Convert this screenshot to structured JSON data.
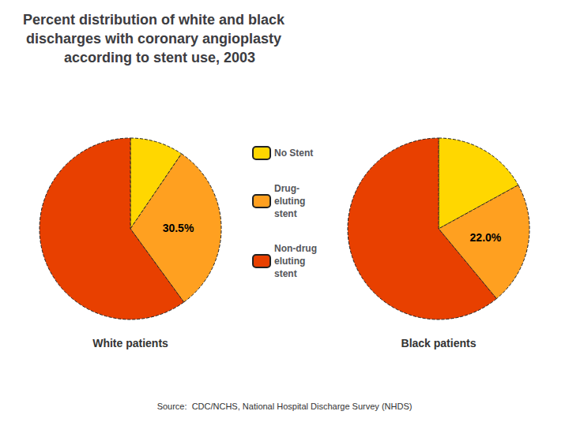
{
  "chart_data": {
    "type": "pie",
    "title": "Percent distribution of white and black\ndischarges with coronary angioplasty\n   according to stent use, 2003",
    "categories": [
      "No Stent",
      "Drug-\neluting\nstent",
      "Non-drug\neluting\nstent"
    ],
    "colors": [
      "#FFD700",
      "#FFA020",
      "#E84000"
    ],
    "series": [
      {
        "name": "White patients",
        "values": [
          9.5,
          30.5,
          60.0
        ],
        "value_labels": [
          null,
          "30.5%",
          null
        ]
      },
      {
        "name": "Black patients",
        "values": [
          17.0,
          22.0,
          61.0
        ],
        "value_labels": [
          null,
          "22.0%",
          null
        ]
      }
    ],
    "legend": "center",
    "annotations": [
      "Source:  CDC/NCHS, National Hospital Discharge Survey (NHDS)"
    ]
  }
}
